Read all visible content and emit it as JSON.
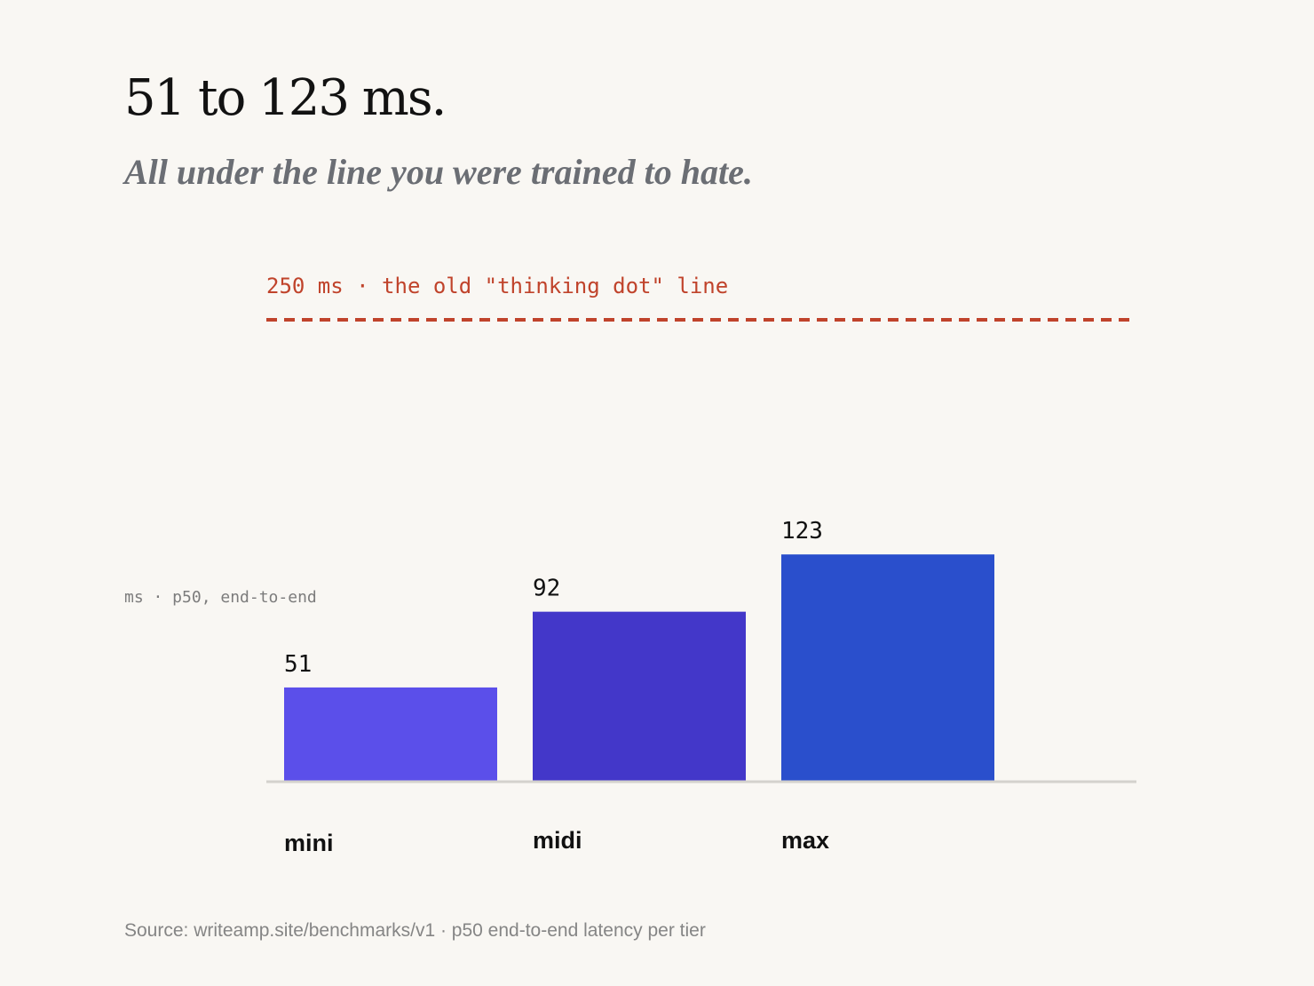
{
  "headline": "51 to 123 ms.",
  "subheadline": "All under the line you were trained to hate.",
  "threshold_label": "250 ms · the old \"thinking dot\" line",
  "unit_label": "ms · p50, end-to-end",
  "source": "Source: writeamp.site/benchmarks/v1 · p50 end-to-end latency per tier",
  "colors": {
    "background": "#f9f7f3",
    "threshold": "#c0432b",
    "baseline": "#d4d2cd",
    "bars": [
      "#5b4fea",
      "#4337c9",
      "#2a4fcc"
    ]
  },
  "chart_data": {
    "type": "bar",
    "categories": [
      "mini",
      "midi",
      "max"
    ],
    "values": [
      51,
      92,
      123
    ],
    "ylabel": "ms · p50, end-to-end",
    "threshold": {
      "value": 250,
      "label": "250 ms · the old \"thinking dot\" line"
    },
    "grid": false
  }
}
